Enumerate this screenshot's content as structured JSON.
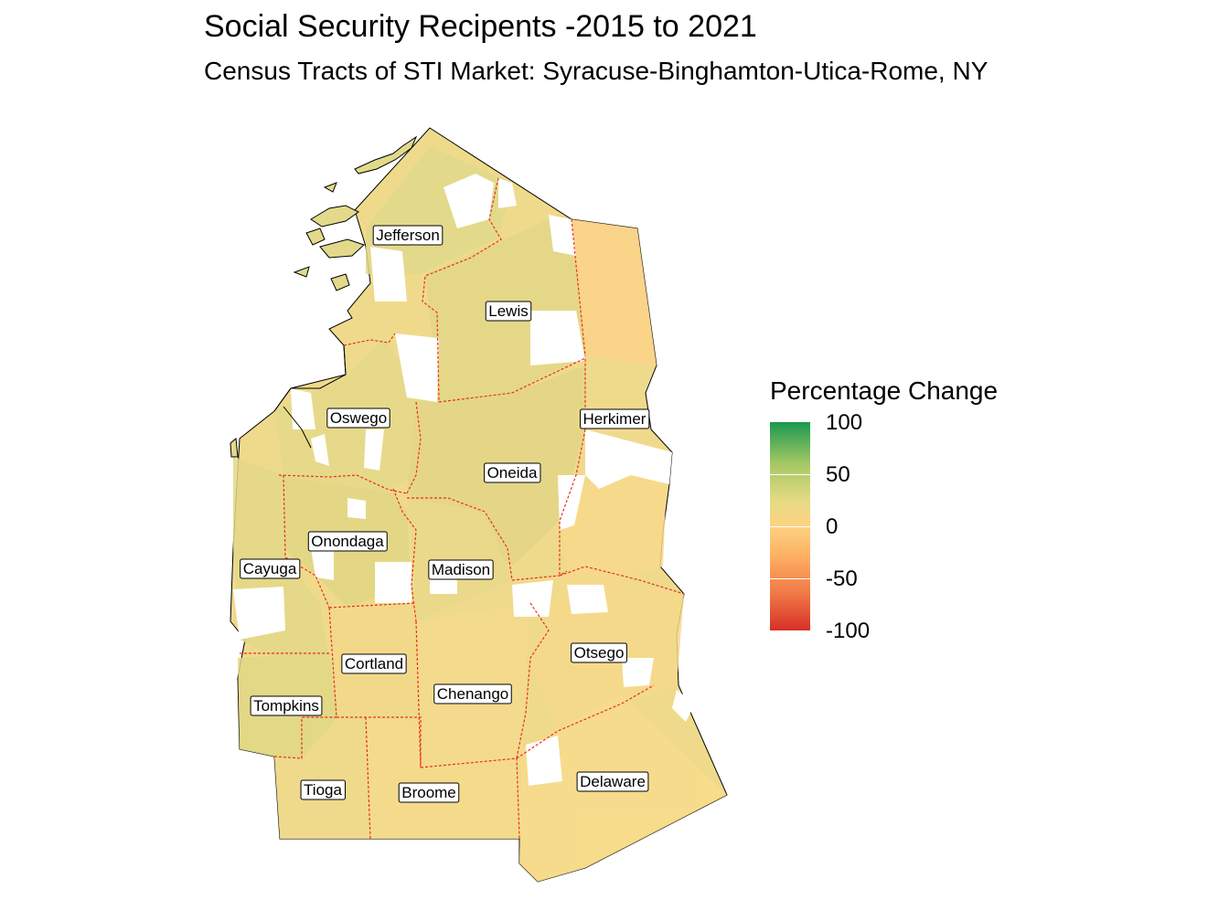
{
  "title": "Social Security Recipents -2015 to 2021",
  "subtitle": "Census Tracts of STI Market: Syracuse-Binghamton-Utica-Rome, NY",
  "legend": {
    "title": "Percentage Change",
    "ticks": [
      "100",
      "50",
      "0",
      "-50",
      "-100"
    ],
    "colors": {
      "high": "#1a9850",
      "mid": "#fdd283",
      "low": "#d73027"
    }
  },
  "colors": {
    "county_border": "#e8301f",
    "fill_light_green": "#e2d98a",
    "fill_neutral": "#f6dc8c",
    "fill_orange": "#fbd489",
    "no_data": "#ffffff"
  },
  "counties": [
    {
      "name": "Jefferson"
    },
    {
      "name": "Lewis"
    },
    {
      "name": "Herkimer"
    },
    {
      "name": "Oswego"
    },
    {
      "name": "Oneida"
    },
    {
      "name": "Onondaga"
    },
    {
      "name": "Cayuga"
    },
    {
      "name": "Madison"
    },
    {
      "name": "Otsego"
    },
    {
      "name": "Cortland"
    },
    {
      "name": "Chenango"
    },
    {
      "name": "Tompkins"
    },
    {
      "name": "Tioga"
    },
    {
      "name": "Broome"
    },
    {
      "name": "Delaware"
    }
  ]
}
